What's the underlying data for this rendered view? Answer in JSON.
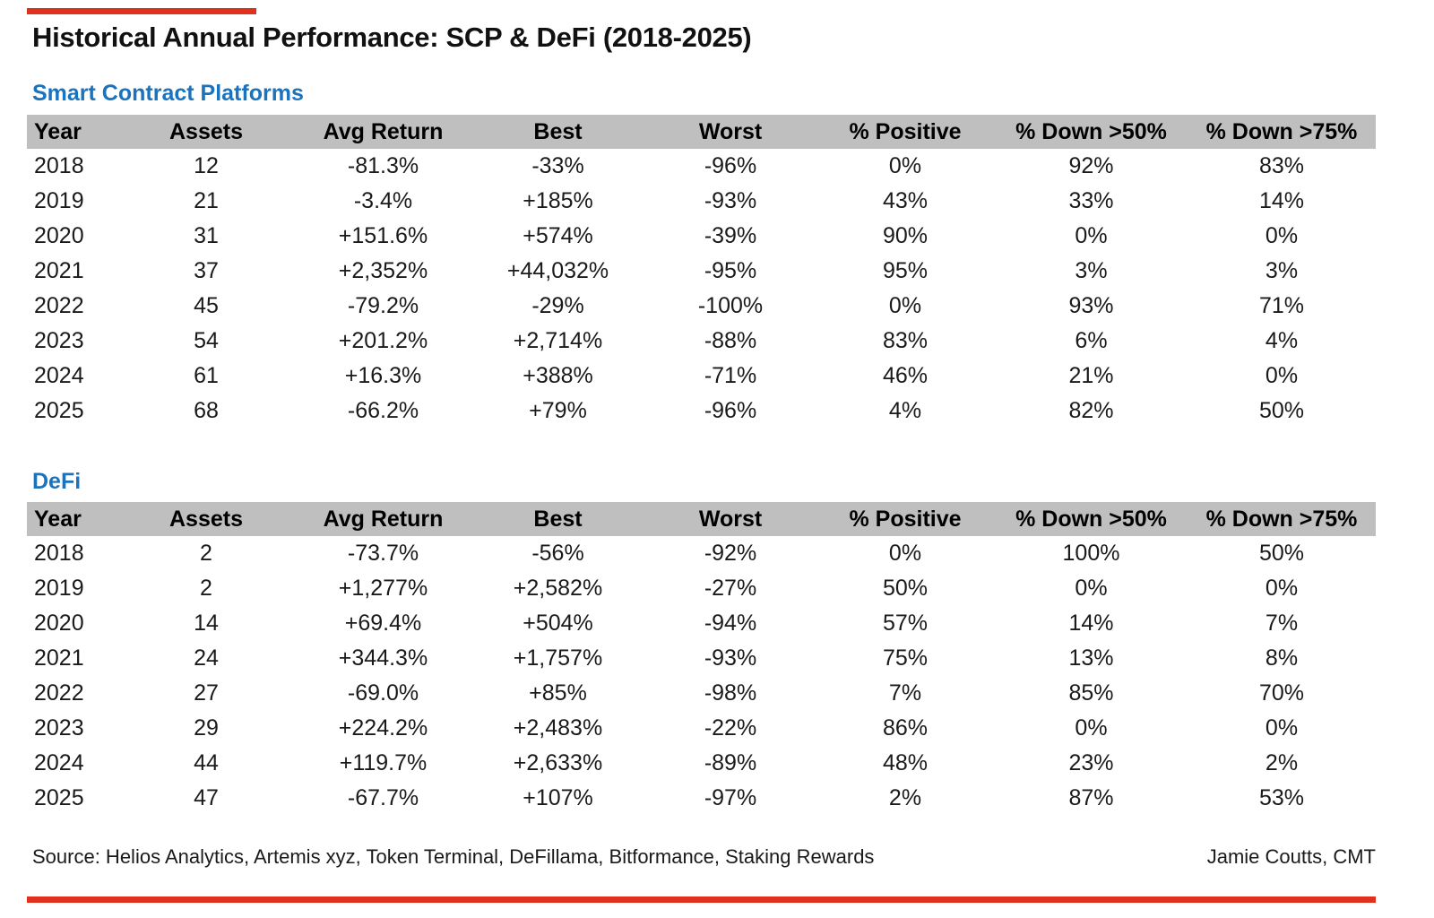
{
  "title": "Historical Annual Performance: SCP & DeFi (2018-2025)",
  "colors": {
    "accent_bar": "#e0301e",
    "section_title": "#1b73be",
    "header_bg": "#bfbfbf",
    "positive": "#208b3d",
    "negative": "#e02428"
  },
  "chart_data": [
    {
      "type": "table",
      "title": "Smart Contract Platforms",
      "columns": [
        "Year",
        "Assets",
        "Avg Return",
        "Best",
        "Worst",
        "% Positive",
        "% Down >50%",
        "% Down >75%"
      ],
      "rows": [
        [
          "2018",
          "12",
          "-81.3%",
          "-33%",
          "-96%",
          "0%",
          "92%",
          "83%"
        ],
        [
          "2019",
          "21",
          "-3.4%",
          "+185%",
          "-93%",
          "43%",
          "33%",
          "14%"
        ],
        [
          "2020",
          "31",
          "+151.6%",
          "+574%",
          "-39%",
          "90%",
          "0%",
          "0%"
        ],
        [
          "2021",
          "37",
          "+2,352%",
          "+44,032%",
          "-95%",
          "95%",
          "3%",
          "3%"
        ],
        [
          "2022",
          "45",
          "-79.2%",
          "-29%",
          "-100%",
          "0%",
          "93%",
          "71%"
        ],
        [
          "2023",
          "54",
          "+201.2%",
          "+2,714%",
          "-88%",
          "83%",
          "6%",
          "4%"
        ],
        [
          "2024",
          "61",
          "+16.3%",
          "+388%",
          "-71%",
          "46%",
          "21%",
          "0%"
        ],
        [
          "2025",
          "68",
          "-66.2%",
          "+79%",
          "-96%",
          "4%",
          "82%",
          "50%"
        ]
      ]
    },
    {
      "type": "table",
      "title": "DeFi",
      "columns": [
        "Year",
        "Assets",
        "Avg Return",
        "Best",
        "Worst",
        "% Positive",
        "% Down >50%",
        "% Down >75%"
      ],
      "rows": [
        [
          "2018",
          "2",
          "-73.7%",
          "-56%",
          "-92%",
          "0%",
          "100%",
          "50%"
        ],
        [
          "2019",
          "2",
          "+1,277%",
          "+2,582%",
          "-27%",
          "50%",
          "0%",
          "0%"
        ],
        [
          "2020",
          "14",
          "+69.4%",
          "+504%",
          "-94%",
          "57%",
          "14%",
          "7%"
        ],
        [
          "2021",
          "24",
          "+344.3%",
          "+1,757%",
          "-93%",
          "75%",
          "13%",
          "8%"
        ],
        [
          "2022",
          "27",
          "-69.0%",
          "+85%",
          "-98%",
          "7%",
          "85%",
          "70%"
        ],
        [
          "2023",
          "29",
          "+224.2%",
          "+2,483%",
          "-22%",
          "86%",
          "0%",
          "0%"
        ],
        [
          "2024",
          "44",
          "+119.7%",
          "+2,633%",
          "-89%",
          "48%",
          "23%",
          "2%"
        ],
        [
          "2025",
          "47",
          "-67.7%",
          "+107%",
          "-97%",
          "2%",
          "87%",
          "53%"
        ]
      ]
    }
  ],
  "footer": {
    "source": "Source: Helios Analytics, Artemis xyz, Token Terminal, DeFillama, Bitformance, Staking Rewards",
    "author": "Jamie Coutts, CMT"
  }
}
